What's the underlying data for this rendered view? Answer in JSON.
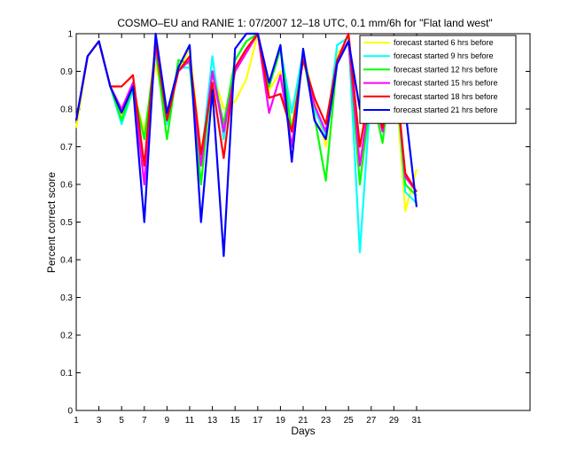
{
  "chart_data": {
    "type": "line",
    "title": "COSMO–EU and RANIE 1: 07/2007 12–18 UTC, 0.1 mm/6h for \"Flat land west\"",
    "xlabel": "Days",
    "ylabel": "Percent correct score",
    "xlim": [
      1,
      41
    ],
    "ylim": [
      0,
      1
    ],
    "x_ticks": [
      1,
      3,
      5,
      7,
      9,
      11,
      13,
      15,
      17,
      19,
      21,
      23,
      25,
      27,
      29,
      31
    ],
    "y_ticks": [
      0,
      0.1,
      0.2,
      0.3,
      0.4,
      0.5,
      0.6,
      0.7,
      0.8,
      0.9,
      1
    ],
    "y_tick_labels": [
      "0",
      "0.1",
      "0.2",
      "0.3",
      "0.4",
      "0.5",
      "0.6",
      "0.7",
      "0.8",
      "0.9",
      "1"
    ],
    "grid": false,
    "legend_position": "top-right",
    "x": [
      1,
      2,
      3,
      4,
      5,
      6,
      7,
      8,
      9,
      10,
      11,
      12,
      13,
      14,
      15,
      16,
      17,
      18,
      19,
      20,
      21,
      22,
      23,
      24,
      25,
      26,
      27,
      28,
      29,
      30,
      31
    ],
    "series": [
      {
        "name": "forecast started 6 hrs before",
        "color": "#ffff00",
        "values": [
          0.75,
          0.94,
          0.98,
          0.86,
          0.78,
          0.85,
          0.74,
          0.92,
          0.78,
          0.9,
          0.96,
          0.68,
          0.9,
          0.8,
          0.82,
          0.88,
          1.0,
          0.85,
          0.9,
          0.75,
          0.95,
          0.82,
          0.7,
          0.95,
          0.97,
          0.7,
          0.88,
          0.78,
          0.93,
          0.53,
          0.64
        ]
      },
      {
        "name": "forecast started 9 hrs before",
        "color": "#00ffff",
        "values": [
          0.77,
          0.94,
          0.98,
          0.86,
          0.76,
          0.85,
          0.72,
          0.95,
          0.76,
          0.91,
          0.91,
          0.66,
          0.94,
          0.72,
          0.93,
          0.98,
          1.0,
          0.86,
          0.96,
          0.79,
          0.95,
          0.8,
          0.73,
          0.97,
          0.99,
          0.42,
          0.86,
          0.79,
          0.95,
          0.58,
          0.55
        ]
      },
      {
        "name": "forecast started 12 hrs before",
        "color": "#00ff00",
        "values": [
          0.77,
          0.94,
          0.98,
          0.86,
          0.77,
          0.86,
          0.72,
          0.96,
          0.72,
          0.93,
          0.92,
          0.6,
          0.9,
          0.76,
          0.93,
          0.98,
          1.0,
          0.86,
          0.96,
          0.74,
          0.94,
          0.78,
          0.61,
          0.93,
          0.98,
          0.6,
          0.85,
          0.71,
          0.95,
          0.6,
          0.57
        ]
      },
      {
        "name": "forecast started 15 hrs before",
        "color": "#ff00ff",
        "values": [
          0.77,
          0.94,
          0.98,
          0.86,
          0.8,
          0.87,
          0.6,
          0.97,
          0.78,
          0.9,
          0.93,
          0.65,
          0.9,
          0.74,
          0.9,
          0.95,
          1.0,
          0.79,
          0.89,
          0.7,
          0.94,
          0.81,
          0.74,
          0.93,
          0.98,
          0.65,
          0.86,
          0.74,
          0.94,
          0.62,
          0.58
        ]
      },
      {
        "name": "forecast started 18 hrs before",
        "color": "#ff0000",
        "values": [
          0.77,
          0.94,
          0.98,
          0.86,
          0.86,
          0.89,
          0.65,
          0.98,
          0.77,
          0.9,
          0.94,
          0.68,
          0.87,
          0.67,
          0.91,
          0.96,
          1.0,
          0.83,
          0.84,
          0.74,
          0.93,
          0.83,
          0.76,
          0.93,
          1.0,
          0.7,
          0.87,
          0.75,
          0.94,
          0.63,
          0.58
        ]
      },
      {
        "name": "forecast started 21 hrs before",
        "color": "#0000ff",
        "values": [
          0.77,
          0.94,
          0.98,
          0.86,
          0.79,
          0.86,
          0.5,
          1.0,
          0.79,
          0.91,
          0.97,
          0.5,
          0.85,
          0.41,
          0.96,
          1.0,
          1.0,
          0.87,
          0.97,
          0.66,
          0.96,
          0.77,
          0.72,
          0.92,
          0.98,
          0.8,
          0.84,
          0.78,
          0.97,
          0.8,
          0.54
        ]
      }
    ]
  }
}
